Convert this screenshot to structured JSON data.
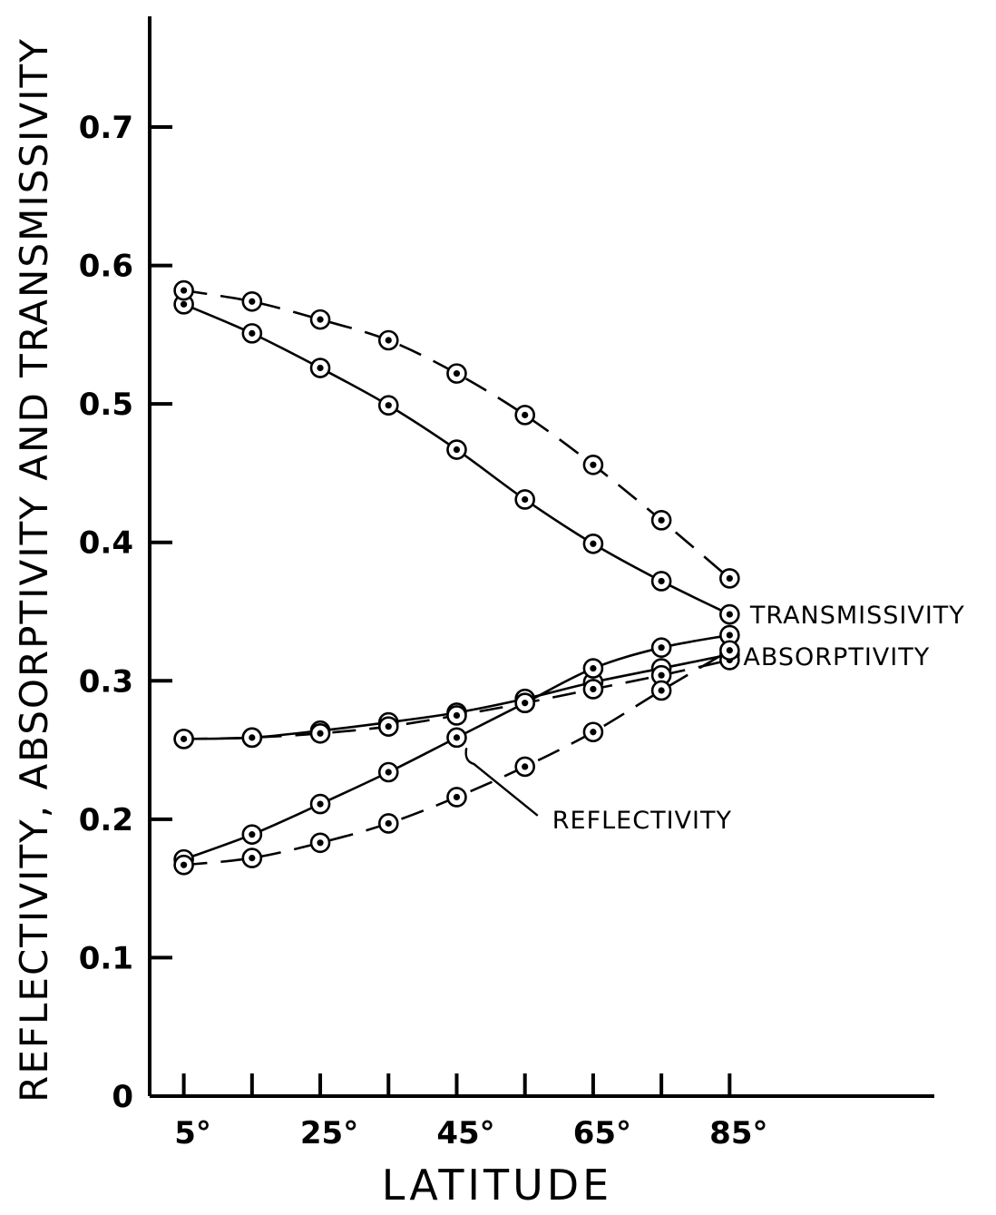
{
  "chart_data": {
    "type": "line",
    "xlabel": "LATITUDE",
    "ylabel": "REFLECTIVITY, ABSORPTIVITY AND TRANSMISSIVITY",
    "x": [
      5,
      15,
      25,
      35,
      45,
      55,
      65,
      75,
      85
    ],
    "x_ticks": [
      5,
      15,
      25,
      35,
      45,
      55,
      65,
      75,
      85
    ],
    "x_tick_labels": [
      "5°",
      "",
      "25°",
      "",
      "45°",
      "",
      "65°",
      "",
      "85°"
    ],
    "xlim": [
      0,
      115
    ],
    "ylim": [
      0,
      0.78
    ],
    "y_ticks": [
      0,
      0.1,
      0.2,
      0.3,
      0.4,
      0.5,
      0.6,
      0.7
    ],
    "y_tick_labels": [
      "0",
      "0.1",
      "0.2",
      "0.3",
      "0.4",
      "0.5",
      "0.6",
      "0.7"
    ],
    "grid": false,
    "marker": "circled-dot",
    "series": [
      {
        "group": "transmissivity",
        "style": "solid",
        "values": [
          0.572,
          0.551,
          0.526,
          0.499,
          0.467,
          0.431,
          0.399,
          0.372,
          0.348
        ]
      },
      {
        "group": "transmissivity",
        "style": "dashed",
        "values": [
          0.582,
          0.574,
          0.561,
          0.546,
          0.522,
          0.492,
          0.456,
          0.416,
          0.374
        ]
      },
      {
        "group": "absorptivity",
        "style": "solid",
        "values": [
          0.258,
          0.259,
          0.264,
          0.27,
          0.277,
          0.287,
          0.299,
          0.309,
          0.319
        ]
      },
      {
        "group": "absorptivity",
        "style": "dashed",
        "values": [
          0.258,
          0.259,
          0.262,
          0.267,
          0.275,
          0.284,
          0.294,
          0.304,
          0.315
        ]
      },
      {
        "group": "reflectivity",
        "style": "solid",
        "values": [
          0.171,
          0.189,
          0.211,
          0.234,
          0.259,
          0.284,
          0.309,
          0.324,
          0.333
        ]
      },
      {
        "group": "reflectivity",
        "style": "dashed",
        "values": [
          0.167,
          0.172,
          0.183,
          0.197,
          0.216,
          0.238,
          0.263,
          0.293,
          0.322
        ]
      }
    ],
    "annotations": [
      {
        "text": "TRANSMISSIVITY",
        "x": 88,
        "y": 0.348
      },
      {
        "text": "ABSORPTIVITY",
        "x": 87,
        "y": 0.318
      },
      {
        "text": "REFLECTIVITY",
        "x": 59,
        "y": 0.2
      }
    ]
  }
}
